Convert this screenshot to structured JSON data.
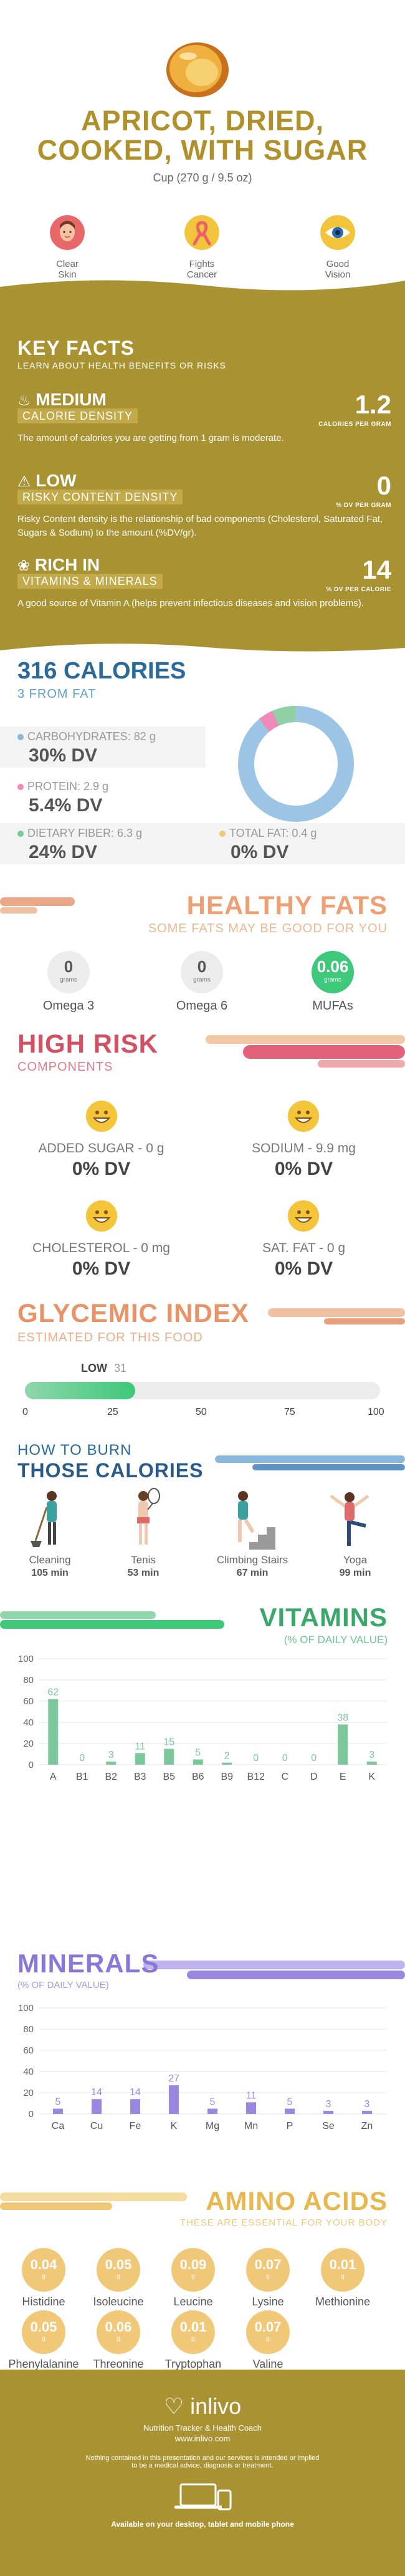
{
  "header": {
    "title_line1": "APRICOT, DRIED,",
    "title_line2": "COOKED, WITH SUGAR",
    "serving": "Cup (270 g / 9.5 oz)",
    "benefits": [
      {
        "label1": "Clear",
        "label2": "Skin",
        "icon": "face-icon",
        "color": "#e8686a"
      },
      {
        "label1": "Fights",
        "label2": "Cancer",
        "icon": "ribbon-icon",
        "color": "#f2c43c"
      },
      {
        "label1": "Good",
        "label2": "Vision",
        "icon": "eye-icon",
        "color": "#f2c43c"
      }
    ]
  },
  "key_facts": {
    "title": "KEY FACTS",
    "subtitle": "LEARN ABOUT HEALTH BENEFITS OR RISKS",
    "facts": [
      {
        "level": "MEDIUM",
        "tag": "CALORIE DENSITY",
        "value": "1.2",
        "unit": "CALORIES PER GRAM",
        "desc": "The amount of calories you are getting from 1 gram is moderate.",
        "icon": "flame-icon"
      },
      {
        "level": "LOW",
        "tag": "RISKY CONTENT DENSITY",
        "value": "0",
        "unit": "% DV PER GRAM",
        "desc": "Risky Content density is the relationship of bad components (Cholesterol, Saturated Fat, Sugars & Sodium) to the amount (%DV/gr).",
        "icon": "warning-icon"
      },
      {
        "level": "RICH  IN",
        "tag": "VITAMINS & MINERALS",
        "value": "14",
        "unit": "% DV PER CALORIE",
        "desc": "A good source of Vitamin A (helps prevent infectious diseases and vision problems).",
        "icon": "leaf-icon"
      }
    ]
  },
  "calories": {
    "title": "316 CALORIES",
    "from_fat": "3 FROM FAT",
    "nutrients": [
      {
        "label": "CARBOHYDRATES: 82 g",
        "dv": "30% DV",
        "color": "#8ab8dc"
      },
      {
        "label": "PROTEIN: 2.9 g",
        "dv": "5.4% DV",
        "color": "#f08ab8"
      },
      {
        "label": "DIETARY FIBER: 6.3 g",
        "dv": "24% DV",
        "color": "#7cc89a"
      },
      {
        "label": "TOTAL FAT: 0.4 g",
        "dv": "0% DV",
        "color": "#f2c878"
      }
    ]
  },
  "healthy_fats": {
    "title": "HEALTHY FATS",
    "subtitle": "SOME FATS MAY BE GOOD FOR YOU",
    "items": [
      {
        "value": "0",
        "unit": "grams",
        "name": "Omega 3"
      },
      {
        "value": "0",
        "unit": "grams",
        "name": "Omega 6"
      },
      {
        "value": "0.06",
        "unit": "grams",
        "name": "MUFAs"
      }
    ]
  },
  "high_risk": {
    "title": "HIGH RISK",
    "subtitle": "COMPONENTS",
    "items": [
      {
        "name": "ADDED SUGAR - 0 g",
        "dv": "0% DV"
      },
      {
        "name": "SODIUM - 9.9 mg",
        "dv": "0% DV"
      },
      {
        "name": "CHOLESTEROL - 0 mg",
        "dv": "0% DV"
      },
      {
        "name": "SAT. FAT - 0 g",
        "dv": "0% DV"
      }
    ]
  },
  "glycemic": {
    "title": "GLYCEMIC INDEX",
    "subtitle": "ESTIMATED FOR THIS FOOD",
    "level": "LOW",
    "value": "31",
    "ticks": [
      "0",
      "25",
      "50",
      "75",
      "100"
    ]
  },
  "burn": {
    "title1": "HOW TO BURN",
    "title2": "THOSE CALORIES",
    "activities": [
      {
        "name": "Cleaning",
        "minutes": "105 min",
        "icon": "cleaning-icon"
      },
      {
        "name": "Tenis",
        "minutes": "53 min",
        "icon": "tennis-icon"
      },
      {
        "name": "Climbing Stairs",
        "minutes": "67 min",
        "icon": "stairs-icon"
      },
      {
        "name": "Yoga",
        "minutes": "99 min",
        "icon": "yoga-icon"
      }
    ]
  },
  "vitamins": {
    "title": "VITAMINS",
    "subtitle": "(% OF DAILY VALUE)"
  },
  "minerals": {
    "title": "MINERALS",
    "subtitle": "(% OF DAILY VALUE)"
  },
  "chart_data": [
    {
      "type": "bar",
      "title": "VITAMINS",
      "subtitle": "(% OF DAILY VALUE)",
      "categories": [
        "A",
        "B1",
        "B2",
        "B3",
        "B5",
        "B6",
        "B9",
        "B12",
        "C",
        "D",
        "E",
        "K"
      ],
      "values": [
        62,
        0,
        3,
        11,
        15,
        5,
        2,
        0,
        0,
        0,
        38,
        3
      ],
      "ylim": [
        0,
        100
      ],
      "yticks": [
        0,
        20,
        40,
        60,
        80,
        100
      ],
      "color": "#7cc89a",
      "grid": true
    },
    {
      "type": "bar",
      "title": "MINERALS",
      "subtitle": "(% OF DAILY VALUE)",
      "categories": [
        "Ca",
        "Cu",
        "Fe",
        "K",
        "Mg",
        "Mn",
        "P",
        "Se",
        "Zn"
      ],
      "values": [
        5,
        14,
        14,
        27,
        5,
        11,
        5,
        3,
        3
      ],
      "ylim": [
        0,
        100
      ],
      "yticks": [
        0,
        20,
        40,
        60,
        80,
        100
      ],
      "color": "#9a88e0",
      "grid": true
    }
  ],
  "amino": {
    "title": "AMINO ACIDS",
    "subtitle": "THESE ARE ESSENTIAL FOR YOUR BODY",
    "items": [
      {
        "value": "0.04",
        "unit": "g",
        "name": "Histidine"
      },
      {
        "value": "0.05",
        "unit": "g",
        "name": "Isoleucine"
      },
      {
        "value": "0.09",
        "unit": "g",
        "name": "Leucine"
      },
      {
        "value": "0.07",
        "unit": "g",
        "name": "Lysine"
      },
      {
        "value": "0.01",
        "unit": "g",
        "name": "Methionine"
      },
      {
        "value": "0.05",
        "unit": "g",
        "name": "Phenylalanine"
      },
      {
        "value": "0.06",
        "unit": "g",
        "name": "Threonine"
      },
      {
        "value": "0.01",
        "unit": "g",
        "name": "Tryptophan"
      },
      {
        "value": "0.07",
        "unit": "g",
        "name": "Valine"
      }
    ]
  },
  "footer": {
    "brand": "inlivo",
    "tagline": "Nutrition Tracker & Health Coach",
    "url": "www.inlivo.com",
    "disclaimer1": "Nothing contained in this presentation and our services is intended or implied",
    "disclaimer2": "to be a medical advice, diagnosis or treatment.",
    "available": "Available on your desktop, tablet and mobile phone"
  }
}
